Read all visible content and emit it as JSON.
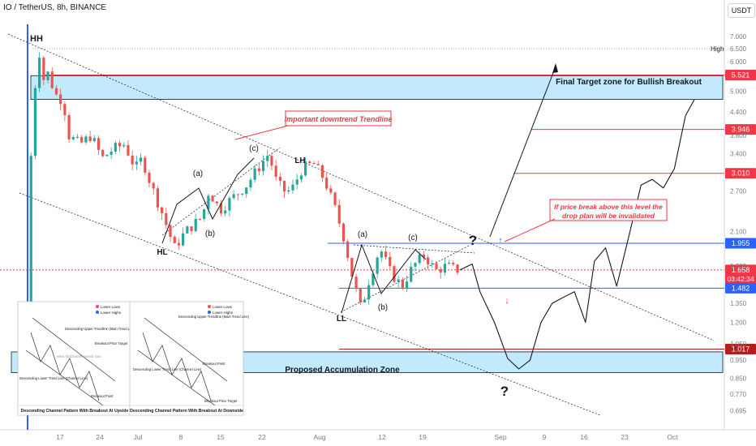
{
  "header": {
    "title": "IO / TetherUS, 8h, BINANCE"
  },
  "axis": {
    "currency_button": "USDT",
    "high_label": "High"
  },
  "zones": {
    "target_label": "Final Target zone for Bullish Breakout",
    "accumulation_label": "Proposed Accumulation Zone"
  },
  "annotations": {
    "trendline_note": "Important downtrend Trendline",
    "invalidation_note_line1": "If price break above this level  the",
    "invalidation_note_line2": "drop plan will be invalidated"
  },
  "wave_labels": [
    "HH",
    "HL",
    "LH",
    "LL",
    "(a)",
    "(b)",
    "(c)",
    "(a)",
    "(b)",
    "(c)",
    "?",
    "?"
  ],
  "insets": {
    "left": {
      "caption": "Descending Channel Pattern With Breakout At Upside",
      "legend": [
        "Lower Lows",
        "Lower Highs"
      ],
      "notes": [
        "Descending Upper Trendline (Main Trend Line)",
        "Breakout Price Target",
        "Descending Lower Trend Line (Channel Line)",
        "Breakout Point"
      ],
      "watermark": "www.TopDownResearch.com"
    },
    "right": {
      "caption": "Descending Channel Pattern With Breakout At Downside",
      "legend": [
        "Lower Lows",
        "Lower Highs"
      ],
      "notes": [
        "Descending Upper Trendline (Main Trend Line)",
        "Descending Lower Trend Line (Channel Line)",
        "Breakout Point",
        "Breakout Price Target"
      ]
    }
  },
  "colors": {
    "bull": "#26a69a",
    "bear": "#ef5350",
    "zone": "#4fc3f7",
    "target_line": "#f23645",
    "level_line": "#2962ff",
    "current": "#f23645"
  },
  "chart_data": {
    "type": "line",
    "title": "IO / TetherUS, 8h, BINANCE",
    "y_scale": "log",
    "ylim": [
      0.65,
      7.4
    ],
    "y_ticks": [
      "7.000",
      "6.500",
      "6.000",
      "5.000",
      "4.400",
      "3.800",
      "3.400",
      "2.700",
      "2.100",
      "1.700",
      "1.350",
      "1.200",
      "1.050",
      "0.950",
      "0.850",
      "0.770",
      "0.695"
    ],
    "x_ticks": [
      "17",
      "24",
      "Jul",
      "8",
      "15",
      "22",
      "Aug",
      "12",
      "19",
      "Sep",
      "9",
      "16",
      "23",
      "Oct"
    ],
    "series": [
      {
        "name": "price",
        "points": [
          [
            0.3,
            1.3
          ],
          [
            0.7,
            4.6
          ],
          [
            1.2,
            5.7
          ],
          [
            1.4,
            6.5
          ],
          [
            1.6,
            5.3
          ],
          [
            2.1,
            5.6
          ],
          [
            2.8,
            4.9
          ],
          [
            3.5,
            4.7
          ],
          [
            4.0,
            3.8
          ],
          [
            5.0,
            3.6
          ],
          [
            6.0,
            3.8
          ],
          [
            7.0,
            3.3
          ],
          [
            8.0,
            3.5
          ],
          [
            9.0,
            3.6
          ],
          [
            10.0,
            3.1
          ],
          [
            10.6,
            3.3
          ],
          [
            11.4,
            2.8
          ],
          [
            12.3,
            2.4
          ],
          [
            13.5,
            1.9
          ],
          [
            14.5,
            2.1
          ],
          [
            16.0,
            2.3
          ],
          [
            16.6,
            2.7
          ],
          [
            17.6,
            2.4
          ],
          [
            18.8,
            2.6
          ],
          [
            20.0,
            2.8
          ],
          [
            21.0,
            3.1
          ],
          [
            22.0,
            3.4
          ],
          [
            22.6,
            2.9
          ],
          [
            23.3,
            2.7
          ],
          [
            24.0,
            2.7
          ],
          [
            25.0,
            3.1
          ],
          [
            26.0,
            3.2
          ],
          [
            27.0,
            2.9
          ],
          [
            28.0,
            2.4
          ],
          [
            28.8,
            2.0
          ],
          [
            29.6,
            1.55
          ],
          [
            30.3,
            1.3
          ],
          [
            31.0,
            1.55
          ],
          [
            32.0,
            1.9
          ],
          [
            33.0,
            1.62
          ],
          [
            34.0,
            1.5
          ],
          [
            35.0,
            1.7
          ],
          [
            36.0,
            1.82
          ],
          [
            37.0,
            1.65
          ],
          [
            38.0,
            1.7
          ],
          [
            38.8,
            1.66
          ],
          [
            39.2,
            1.658
          ]
        ]
      },
      {
        "name": "projection",
        "points": [
          [
            39.2,
            1.658
          ],
          [
            40.3,
            1.72
          ],
          [
            41.0,
            1.45
          ],
          [
            42.3,
            1.2
          ],
          [
            43.5,
            0.96
          ],
          [
            44.5,
            0.9
          ],
          [
            45.5,
            0.95
          ],
          [
            46.5,
            1.2
          ],
          [
            47.5,
            1.35
          ],
          [
            48.5,
            1.4
          ],
          [
            49.5,
            1.45
          ],
          [
            50.5,
            1.2
          ],
          [
            51.3,
            1.75
          ],
          [
            52.3,
            1.9
          ],
          [
            53.3,
            1.5
          ],
          [
            54.5,
            2.1
          ],
          [
            55.5,
            2.8
          ],
          [
            56.5,
            2.9
          ],
          [
            57.5,
            2.75
          ],
          [
            58.5,
            3.1
          ],
          [
            59.5,
            4.3
          ],
          [
            60.3,
            4.75
          ]
        ]
      }
    ],
    "levels": [
      {
        "label": "5.521",
        "value": 5.521
      },
      {
        "label": "3.946",
        "value": 3.946
      },
      {
        "label": "3.010",
        "value": 3.01
      },
      {
        "label": "1.955",
        "value": 1.955
      },
      {
        "label": "1.658",
        "value": 1.658,
        "countdown": "03:42:34"
      },
      {
        "label": "1.482",
        "value": 1.482
      },
      {
        "label": "1.017",
        "value": 1.017
      }
    ],
    "target_zone": [
      4.75,
      5.5
    ],
    "accumulation_zone": [
      0.88,
      1.0
    ],
    "grid": false
  }
}
